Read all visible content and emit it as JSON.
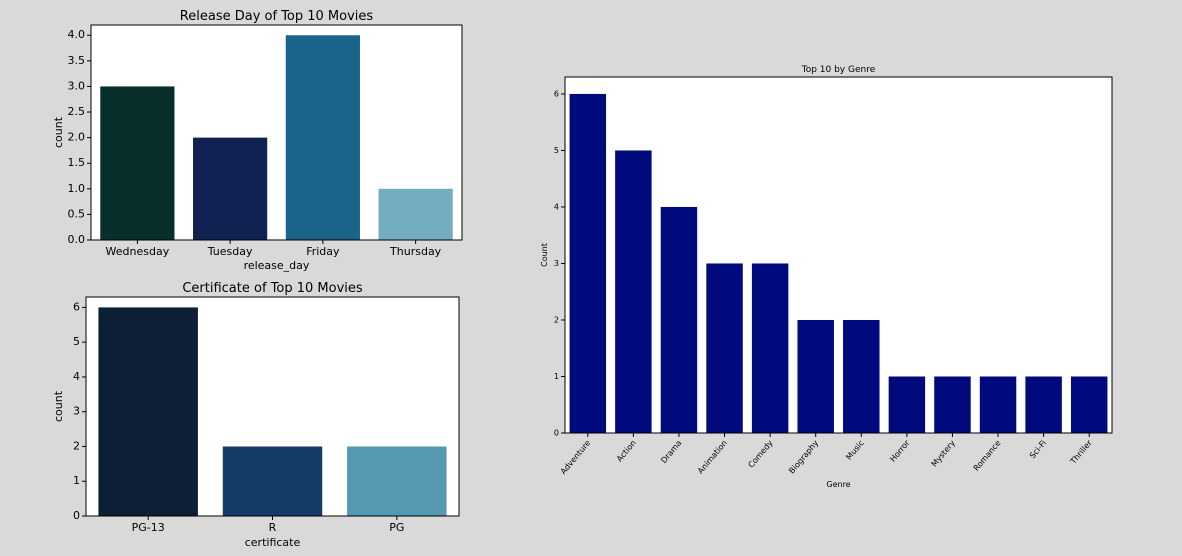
{
  "chart_data": [
    {
      "id": "release_day",
      "type": "bar",
      "title": "Release Day of Top 10 Movies",
      "xlabel": "release_day",
      "ylabel": "count",
      "categories": [
        "Wednesday",
        "Tuesday",
        "Friday",
        "Thursday"
      ],
      "values": [
        3,
        2,
        4,
        1
      ],
      "colors": [
        "#082f2c",
        "#112252",
        "#1a648a",
        "#74adbf"
      ],
      "ylim": [
        0,
        4.2
      ],
      "yticks": [
        0.0,
        0.5,
        1.0,
        1.5,
        2.0,
        2.5,
        3.0,
        3.5,
        4.0
      ],
      "ytick_decimals": 1,
      "grid": false
    },
    {
      "id": "certificate",
      "type": "bar",
      "title": "Certificate of Top 10 Movies",
      "xlabel": "certificate",
      "ylabel": "count",
      "categories": [
        "PG-13",
        "R",
        "PG"
      ],
      "values": [
        6,
        2,
        2
      ],
      "colors": [
        "#0c1f35",
        "#143c66",
        "#5499b1"
      ],
      "ylim": [
        0,
        6.3
      ],
      "yticks": [
        0,
        1,
        2,
        3,
        4,
        5,
        6
      ],
      "ytick_decimals": 0,
      "grid": false
    },
    {
      "id": "genre",
      "type": "bar",
      "title": "Top 10 by Genre",
      "xlabel": "Genre",
      "ylabel": "Count",
      "categories": [
        "Adventure",
        "Action",
        "Drama",
        "Animation",
        "Comedy",
        "Biography",
        "Music",
        "Horror",
        "Mystery",
        "Romance",
        "Sci-Fi",
        "Thriller"
      ],
      "values": [
        6,
        5,
        4,
        3,
        3,
        2,
        2,
        1,
        1,
        1,
        1,
        1
      ],
      "colors": [
        "#000a7c"
      ],
      "ylim": [
        0,
        6.3
      ],
      "yticks": [
        0,
        1,
        2,
        3,
        4,
        5,
        6
      ],
      "ytick_decimals": 0,
      "xtick_rotation": -45,
      "grid": false
    }
  ]
}
